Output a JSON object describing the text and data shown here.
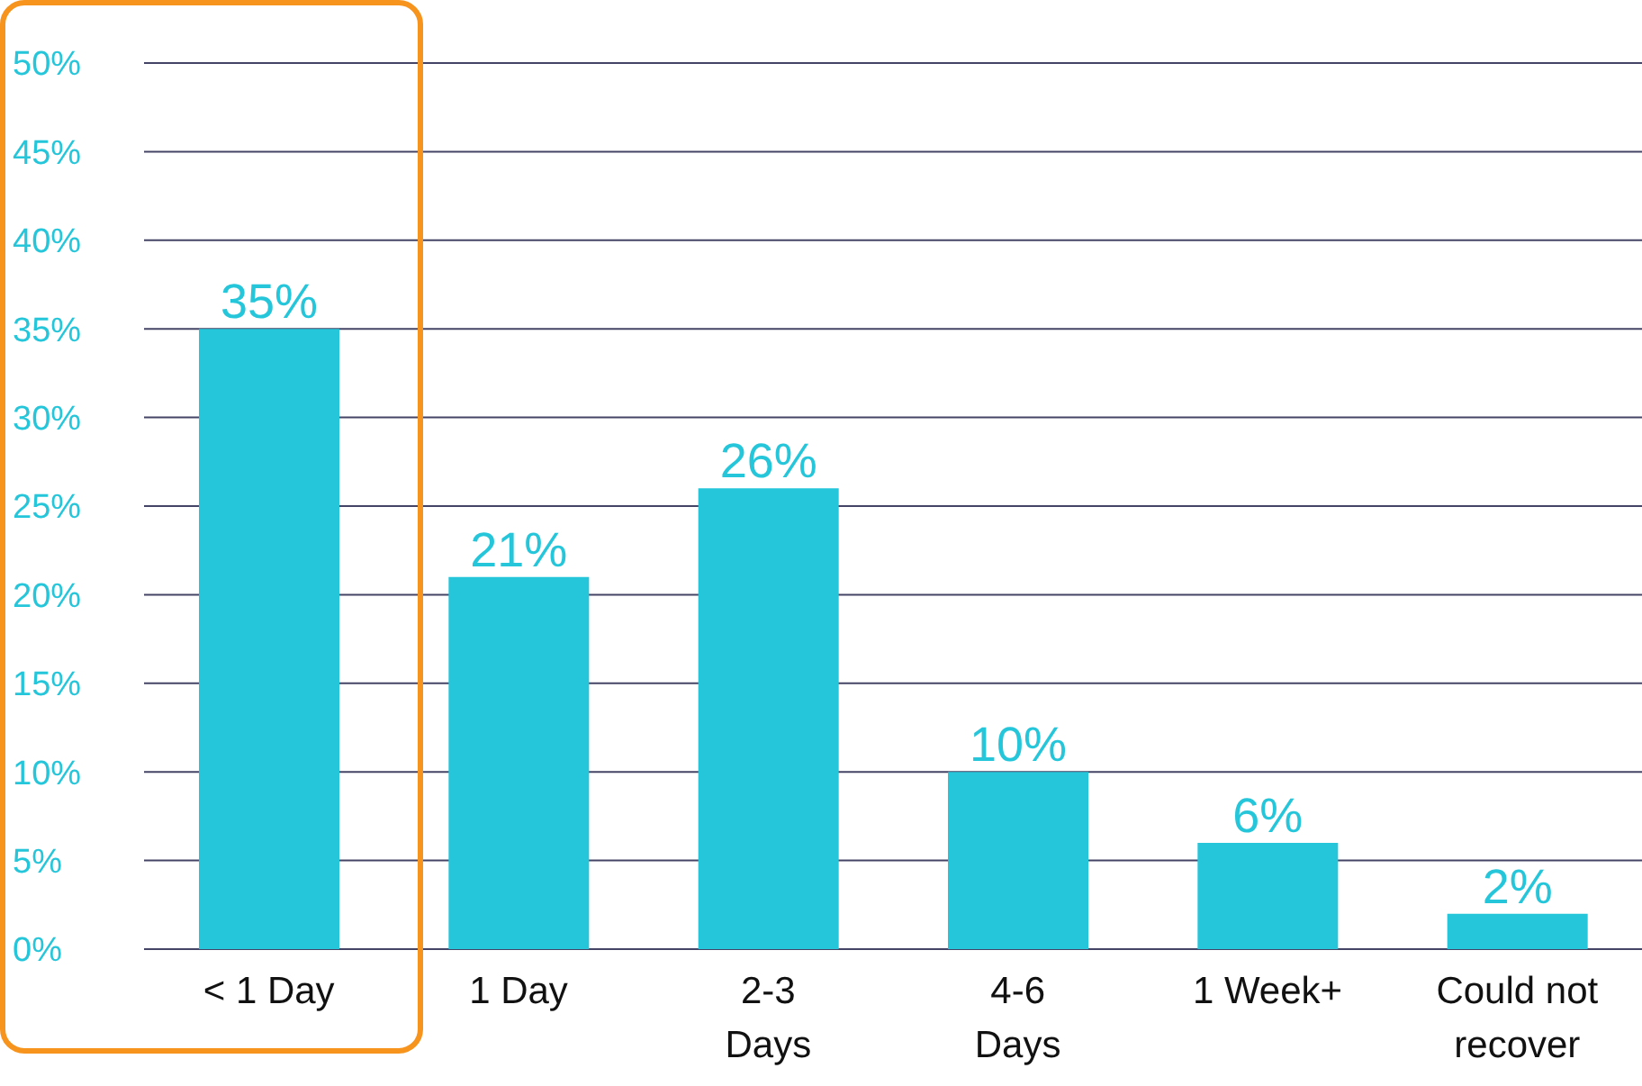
{
  "chart_data": {
    "type": "bar",
    "categories": [
      "< 1 Day",
      "1 Day",
      "2-3\nDays",
      "4-6\nDays",
      "1 Week+",
      "Could not\nrecover"
    ],
    "values": [
      35,
      21,
      26,
      10,
      6,
      2
    ],
    "value_labels": [
      "35%",
      "21%",
      "26%",
      "10%",
      "6%",
      "2%"
    ],
    "color": "#26c6da",
    "ylim": [
      0,
      50
    ],
    "yticks": [
      {
        "value": 0,
        "label": "0%"
      },
      {
        "value": 5,
        "label": "5%"
      },
      {
        "value": 10,
        "label": "10%"
      },
      {
        "value": 15,
        "label": "15%"
      },
      {
        "value": 20,
        "label": "20%"
      },
      {
        "value": 25,
        "label": "25%"
      },
      {
        "value": 30,
        "label": "30%"
      },
      {
        "value": 35,
        "label": "35%"
      },
      {
        "value": 40,
        "label": "40%"
      },
      {
        "value": 45,
        "label": "45%"
      },
      {
        "value": 50,
        "label": "50%"
      }
    ],
    "grid": "y"
  }
}
